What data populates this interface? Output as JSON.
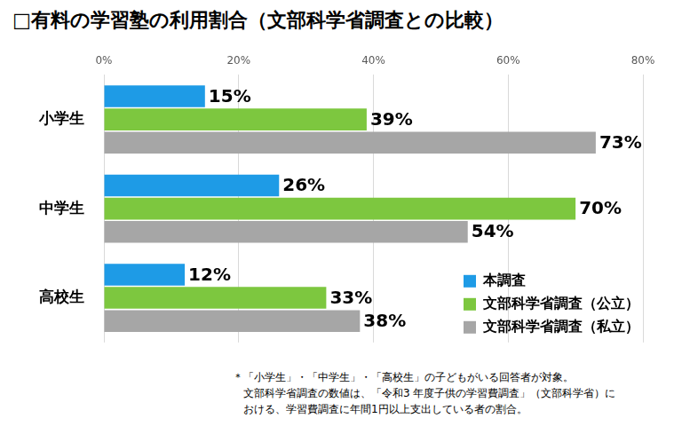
{
  "chart_data": {
    "type": "bar",
    "title": "□有料の学習塾の利用割合（文部科学省調査との比較）",
    "orientation": "horizontal",
    "categories": [
      "小学生",
      "中学生",
      "高校生"
    ],
    "series": [
      {
        "name": "本調査",
        "color": "#1e9be6",
        "values": [
          15,
          26,
          12
        ],
        "value_labels": [
          "15%",
          "26%",
          "12%"
        ]
      },
      {
        "name": "文部科学省調査（公立）",
        "color": "#7dc73f",
        "values": [
          39,
          70,
          33
        ],
        "value_labels": [
          "39%",
          "70%",
          "33%"
        ]
      },
      {
        "name": "文部科学省調査（私立）",
        "color": "#a6a6a6",
        "values": [
          73,
          54,
          38
        ],
        "value_labels": [
          "73%",
          "54%",
          "38%"
        ]
      }
    ],
    "xlim": [
      0,
      80
    ],
    "xticks": [
      {
        "value": 0,
        "label": "0%"
      },
      {
        "value": 20,
        "label": "20%"
      },
      {
        "value": 40,
        "label": "40%"
      },
      {
        "value": 60,
        "label": "60%"
      },
      {
        "value": 80,
        "label": "80%"
      }
    ],
    "grid": true,
    "legend": "lower right",
    "data_labels": true,
    "annotations": [
      "＊「小学生」・「中学生」・「高校生」の子どもがいる回答者が対象。",
      "文部科学省調査の数値は、「令和3 年度子供の学習費調査」（文部科学省）に",
      "おける、学習費調査に年間1円以上支出している者の割合。"
    ]
  }
}
